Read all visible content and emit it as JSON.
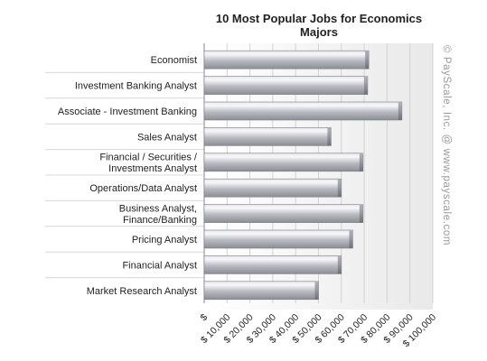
{
  "chart_data": {
    "type": "bar",
    "orientation": "horizontal",
    "title_lines": [
      "10 Most Popular Jobs for Economics",
      "Majors"
    ],
    "categories": [
      [
        "Economist"
      ],
      [
        "Investment Banking Analyst"
      ],
      [
        "Associate - Investment Banking"
      ],
      [
        "Sales Analyst"
      ],
      [
        "Financial / Securities /",
        "Investments Analyst"
      ],
      [
        "Operations/Data Analyst"
      ],
      [
        "Business Analyst,",
        "Finance/Banking"
      ],
      [
        "Pricing Analyst"
      ],
      [
        "Financial Analyst"
      ],
      [
        "Market Research Analyst"
      ]
    ],
    "values": [
      72000,
      71500,
      86500,
      55500,
      69500,
      60000,
      69500,
      65000,
      60000,
      50000
    ],
    "xlim": [
      0,
      100000
    ],
    "ticks": [
      0,
      10000,
      20000,
      30000,
      40000,
      50000,
      60000,
      70000,
      80000,
      90000,
      100000
    ],
    "tick_labels": [
      "$",
      "$ 10,000",
      "$ 20,000",
      "$ 30,000",
      "$ 40,000",
      "$ 50,000",
      "$ 60,000",
      "$ 70,000",
      "$ 80,000",
      "$ 90,000",
      "$ 100,000"
    ],
    "grid": true,
    "bar_color": "#b4b6be",
    "watermark": "© PayScale, Inc. @ www.payscale.com"
  }
}
